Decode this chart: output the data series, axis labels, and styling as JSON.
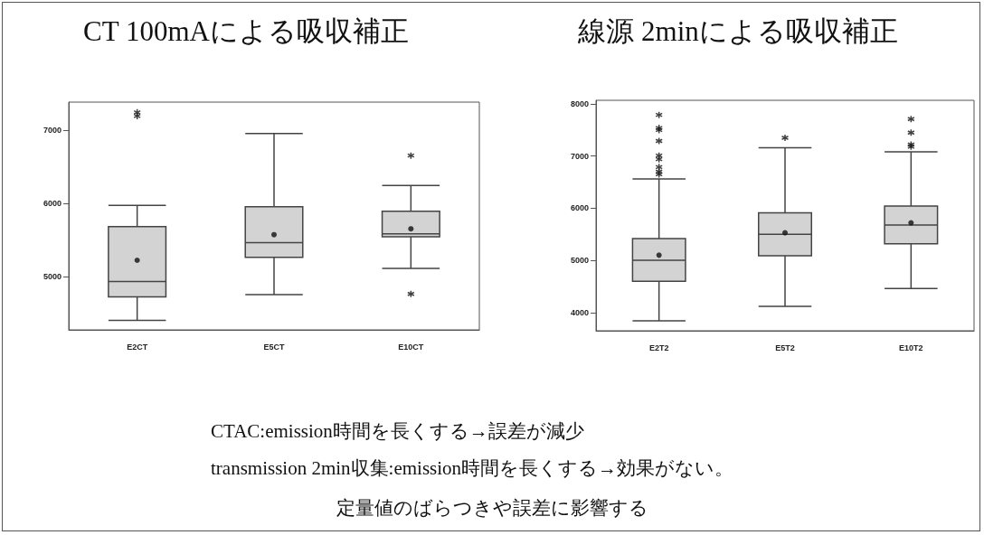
{
  "chart_data": [
    {
      "type": "box",
      "title": "CT 100mAによる吸収補正",
      "categories": [
        "E2CT",
        "E5CT",
        "E10CT"
      ],
      "ylim": [
        4270,
        7380
      ],
      "yticks": [
        5000,
        6000,
        7000
      ],
      "color": "#d3d3d3",
      "grid": false,
      "boxes": [
        {
          "low": 4400,
          "q1": 4720,
          "median": 4930,
          "q3": 5680,
          "high": 5970,
          "mean": 5220,
          "outliers": [
            7240,
            7190
          ]
        },
        {
          "low": 4750,
          "q1": 5260,
          "median": 5460,
          "q3": 5950,
          "high": 6950,
          "mean": 5570
        },
        {
          "low": 5110,
          "q1": 5540,
          "median": 5580,
          "q3": 5890,
          "high": 6240,
          "mean": 5650,
          "outliers": [
            6650,
            4760
          ]
        }
      ]
    },
    {
      "type": "box",
      "title": "線源 2minによる吸収補正",
      "categories": [
        "E2T2",
        "E5T2",
        "E10T2"
      ],
      "ylim": [
        3650,
        8070
      ],
      "yticks": [
        4000,
        5000,
        6000,
        7000,
        8000
      ],
      "color": "#d3d3d3",
      "grid": false,
      "boxes": [
        {
          "low": 3840,
          "q1": 4600,
          "median": 5000,
          "q3": 5420,
          "high": 6560,
          "mean": 5100,
          "outliers": [
            7790,
            7540,
            7500,
            7290,
            7010,
            6940,
            6790,
            6700,
            6650
          ]
        },
        {
          "low": 4120,
          "q1": 5090,
          "median": 5500,
          "q3": 5910,
          "high": 7160,
          "mean": 5530,
          "outliers": [
            7350
          ]
        },
        {
          "low": 4460,
          "q1": 5320,
          "median": 5680,
          "q3": 6040,
          "high": 7080,
          "mean": 5720,
          "outliers": [
            7710,
            7450,
            7220,
            7180
          ]
        }
      ]
    },
    {
      "type": "other",
      "annotations": [
        "CTAC:emission時間を長くする→誤差が減少",
        "transmission 2min収集:emission時間を長くする→効果がない。",
        "定量値のばらつきや誤差に影響する"
      ]
    }
  ]
}
